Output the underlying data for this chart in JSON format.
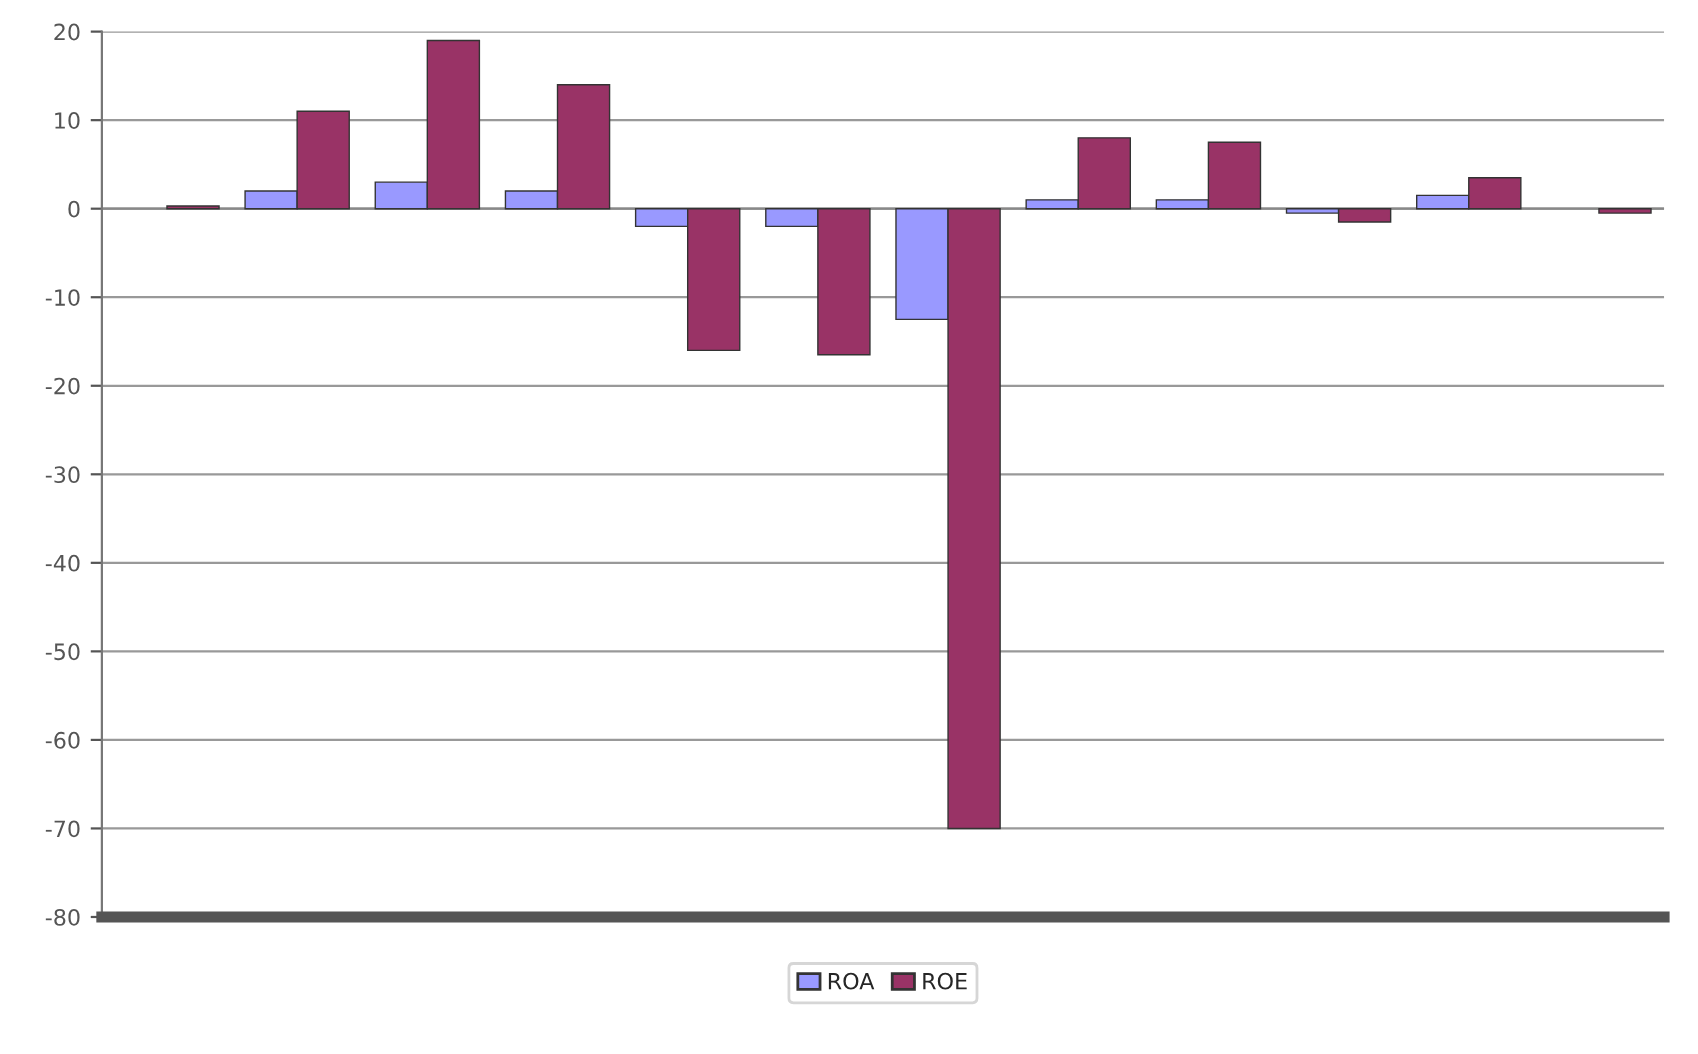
{
  "chart_data": {
    "type": "bar",
    "categories": [
      null,
      null,
      null,
      null,
      null,
      null,
      null,
      null,
      null,
      null,
      null,
      null
    ],
    "series": [
      {
        "name": "ROA",
        "color": "#9999ff",
        "values": [
          null,
          2,
          3,
          2,
          -2,
          -2,
          -12.5,
          1,
          1,
          -0.5,
          1.5,
          null
        ]
      },
      {
        "name": "ROE",
        "color": "#993366",
        "values": [
          0.3,
          11,
          19,
          14,
          -16,
          -16.5,
          -70,
          8,
          7.5,
          -1.5,
          3.5,
          -0.5
        ]
      }
    ],
    "ylim": [
      -80,
      20
    ],
    "yticks": [
      -80,
      -70,
      -60,
      -50,
      -40,
      -30,
      -20,
      -10,
      0,
      10,
      20
    ],
    "grid": "y",
    "legend": "bottom",
    "tick_labels": "y"
  }
}
